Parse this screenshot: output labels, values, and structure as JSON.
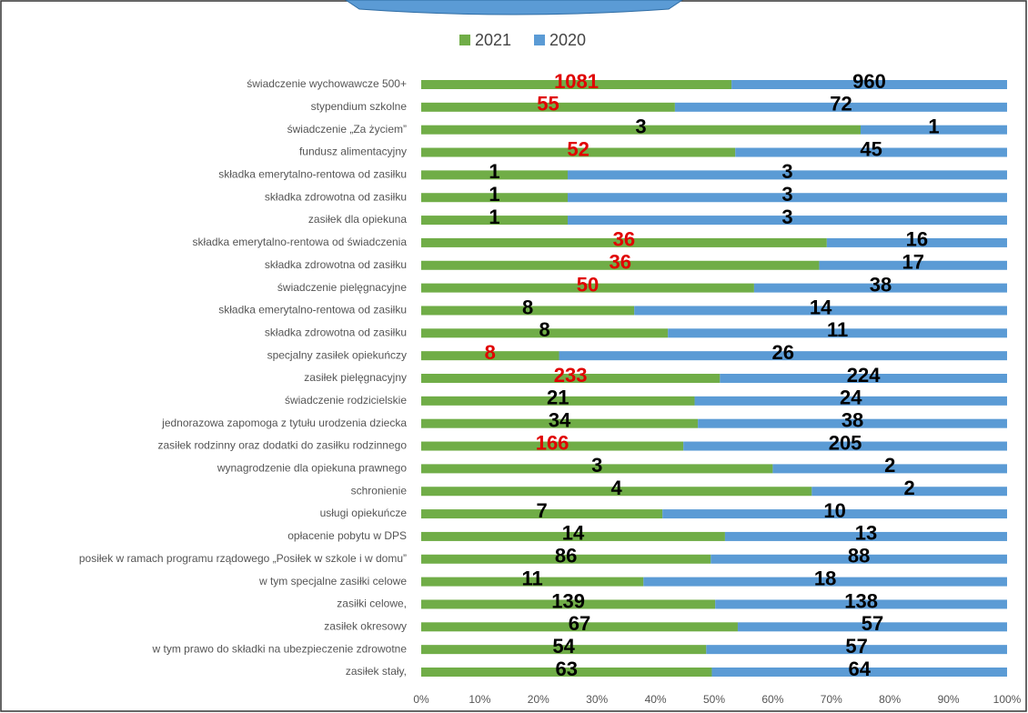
{
  "chart_data": {
    "type": "bar100h",
    "categories": [
      "świadczenie wychowawcze 500+",
      "stypendium szkolne",
      "świadczenie „Za życiem”",
      "fundusz alimentacyjny",
      "składka emerytalno-rentowa od zasiłku",
      "składka zdrowotna od zasiłku",
      "zasiłek dla opiekuna",
      "składka emerytalno-rentowa od świadczenia",
      "składka zdrowotna od zasiłku",
      "świadczenie pielęgnacyjne",
      "składka emerytalno-rentowa od zasiłku",
      "składka zdrowotna od zasiłku",
      "specjalny zasiłek opiekuńczy",
      "zasiłek pielęgnacyjny",
      "świadczenie rodzicielskie",
      "jednorazowa zapomoga z tytułu urodzenia dziecka",
      "zasiłek rodzinny oraz dodatki do zasiłku rodzinnego",
      "wynagrodzenie dla opiekuna prawnego",
      "schronienie",
      "usługi opiekuńcze",
      "opłacenie pobytu w DPS",
      "posiłek w ramach programu rządowego „Posiłek w szkole i w domu”",
      "w tym specjalne zasiłki celowe",
      "zasiłki celowe,",
      "zasiłek okresowy",
      "w tym prawo do składki na ubezpieczenie zdrowotne",
      "zasiłek stały,"
    ],
    "series": [
      {
        "name": "2021",
        "color": "#70ad47",
        "values": [
          1081,
          55,
          3,
          52,
          1,
          1,
          1,
          36,
          36,
          50,
          8,
          8,
          8,
          233,
          21,
          34,
          166,
          3,
          4,
          7,
          14,
          86,
          11,
          139,
          67,
          54,
          63
        ],
        "value_label_colors": [
          "#e00000",
          "#e00000",
          "#000",
          "#e00000",
          "#000",
          "#000",
          "#000",
          "#e00000",
          "#e00000",
          "#e00000",
          "#000",
          "#000",
          "#e00000",
          "#e00000",
          "#000",
          "#000",
          "#e00000",
          "#000",
          "#000",
          "#000",
          "#000",
          "#000",
          "#000",
          "#000",
          "#000",
          "#000",
          "#000"
        ]
      },
      {
        "name": "2020",
        "color": "#5b9bd5",
        "values": [
          960,
          72,
          1,
          45,
          3,
          3,
          3,
          16,
          17,
          38,
          14,
          11,
          26,
          224,
          24,
          38,
          205,
          2,
          2,
          10,
          13,
          88,
          18,
          138,
          57,
          57,
          64
        ],
        "value_label_color": "#000"
      }
    ],
    "xlim": [
      0,
      100
    ],
    "xticks": [
      {
        "value": 0,
        "label": "0%"
      },
      {
        "value": 10,
        "label": "10%"
      },
      {
        "value": 20,
        "label": "20%"
      },
      {
        "value": 30,
        "label": "30%"
      },
      {
        "value": 40,
        "label": "40%"
      },
      {
        "value": 50,
        "label": "50%"
      },
      {
        "value": 60,
        "label": "60%"
      },
      {
        "value": 70,
        "label": "70%"
      },
      {
        "value": 80,
        "label": "80%"
      },
      {
        "value": 90,
        "label": "90%"
      },
      {
        "value": 100,
        "label": "100%"
      }
    ],
    "legend": "top"
  }
}
